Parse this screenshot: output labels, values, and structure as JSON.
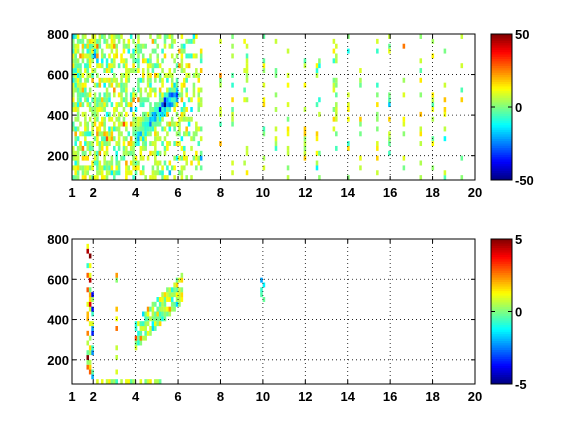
{
  "colormap": "jet",
  "chart_data": [
    {
      "type": "heatmap",
      "title": "",
      "xlabel": "",
      "ylabel": "",
      "xlim": [
        1,
        20
      ],
      "ylim": [
        80,
        800
      ],
      "xticks": [
        1,
        2,
        4,
        6,
        8,
        10,
        12,
        14,
        16,
        18,
        20
      ],
      "yticks": [
        200,
        400,
        600,
        800
      ],
      "grid": true,
      "colorbar": {
        "min": -50,
        "max": 50,
        "ticks": [
          -50,
          0,
          50
        ]
      },
      "noise_std": 8,
      "features": [
        {
          "kind": "broadband",
          "x": [
            1.0,
            7.2
          ],
          "density": 0.75,
          "mean": 4
        },
        {
          "kind": "ridge",
          "x_start": 4.0,
          "x_end": 6.0,
          "y_start": 300,
          "y_end": 520,
          "width_y": 60,
          "value": -30
        },
        {
          "kind": "hotspot",
          "x": 4.2,
          "y": 350,
          "value": 25
        },
        {
          "kind": "stripes",
          "x": [
            8,
            8.6,
            9.2,
            10,
            10.6,
            11.2,
            12,
            12.6,
            13.4,
            14,
            14.6,
            15.4,
            16,
            16.6,
            17.4,
            18,
            18.6,
            19.4
          ],
          "density": 0.3,
          "mean": 5
        }
      ]
    },
    {
      "type": "heatmap",
      "title": "",
      "xlabel": "",
      "ylabel": "",
      "xlim": [
        1,
        20
      ],
      "ylim": [
        80,
        800
      ],
      "xticks": [
        1,
        2,
        4,
        6,
        8,
        10,
        12,
        14,
        16,
        18,
        20
      ],
      "yticks": [
        200,
        400,
        600,
        800
      ],
      "grid": true,
      "colorbar": {
        "min": -5,
        "max": 5,
        "ticks": [
          -5,
          0,
          5
        ]
      },
      "noise_std": 0.8,
      "features": [
        {
          "kind": "blob",
          "x_start": 4.0,
          "x_end": 6.2,
          "y_start": 320,
          "y_end": 560,
          "width_y": 70,
          "density": 0.85,
          "mean": 0.3
        },
        {
          "kind": "line",
          "x": 1.8,
          "y": [
            100,
            780
          ],
          "density": 0.5,
          "mean": 1.5
        },
        {
          "kind": "line",
          "x": 2.0,
          "y": [
            80,
            620
          ],
          "density": 0.4,
          "mean": -1.5
        },
        {
          "kind": "line",
          "x": 3.1,
          "y": [
            80,
            720
          ],
          "density": 0.25,
          "mean": 0.5
        },
        {
          "kind": "floor",
          "x": [
            2.0,
            5.2
          ],
          "y": [
            80,
            110
          ],
          "density": 0.6,
          "mean": 0.5
        },
        {
          "kind": "spot",
          "x": 10.0,
          "y": [
            480,
            620
          ],
          "density": 0.6,
          "mean": -1.0
        }
      ]
    }
  ]
}
